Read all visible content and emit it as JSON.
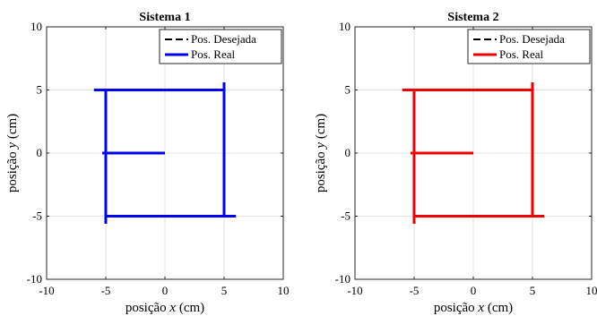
{
  "chart_data": [
    {
      "type": "line",
      "title": "Sistema 1",
      "xlabel_pre": "posição ",
      "xlabel_var": "x",
      "xlabel_post": " (cm)",
      "ylabel_pre": "posição ",
      "ylabel_var": "y",
      "ylabel_post": " (cm)",
      "xlim": [
        -10,
        10
      ],
      "ylim": [
        -10,
        10
      ],
      "xticks": [
        -10,
        -5,
        0,
        5,
        10
      ],
      "yticks": [
        -10,
        -5,
        0,
        5,
        10
      ],
      "grid": true,
      "legend_position": "top-right",
      "series": [
        {
          "name": "Pos. Desejada",
          "style": "dashed",
          "color": "#000000",
          "x": [
            0,
            -5,
            -5,
            5,
            5,
            -5,
            -5
          ],
          "y": [
            0,
            0,
            5,
            5,
            -5,
            -5,
            0
          ]
        },
        {
          "name": "Pos. Real",
          "style": "solid",
          "color": "#0000ee",
          "segments": [
            {
              "x": [
                -5.3,
                0
              ],
              "y": [
                0,
                0
              ]
            },
            {
              "x": [
                -6,
                5
              ],
              "y": [
                5,
                5
              ]
            },
            {
              "x": [
                -5,
                -5
              ],
              "y": [
                5,
                -5.6
              ]
            },
            {
              "x": [
                5,
                5
              ],
              "y": [
                5.6,
                -5
              ]
            },
            {
              "x": [
                -5,
                6
              ],
              "y": [
                -5,
                -5
              ]
            }
          ]
        }
      ]
    },
    {
      "type": "line",
      "title": "Sistema 2",
      "xlabel_pre": "posição ",
      "xlabel_var": "x",
      "xlabel_post": " (cm)",
      "ylabel_pre": "posição ",
      "ylabel_var": "y",
      "ylabel_post": " (cm)",
      "xlim": [
        -10,
        10
      ],
      "ylim": [
        -10,
        10
      ],
      "xticks": [
        -10,
        -5,
        0,
        5,
        10
      ],
      "yticks": [
        -10,
        -5,
        0,
        5,
        10
      ],
      "grid": true,
      "legend_position": "top-right",
      "series": [
        {
          "name": "Pos. Desejada",
          "style": "dashed",
          "color": "#000000",
          "x": [
            0,
            -5,
            -5,
            5,
            5,
            -5,
            -5
          ],
          "y": [
            0,
            0,
            5,
            5,
            -5,
            -5,
            0
          ]
        },
        {
          "name": "Pos. Real",
          "style": "solid",
          "color": "#ee0000",
          "segments": [
            {
              "x": [
                -5.3,
                0
              ],
              "y": [
                0,
                0
              ]
            },
            {
              "x": [
                -6,
                5
              ],
              "y": [
                5,
                5
              ]
            },
            {
              "x": [
                -5,
                -5
              ],
              "y": [
                5,
                -5.6
              ]
            },
            {
              "x": [
                5,
                5
              ],
              "y": [
                5.6,
                -5
              ]
            },
            {
              "x": [
                -5,
                6
              ],
              "y": [
                -5,
                -5
              ]
            }
          ]
        }
      ]
    }
  ]
}
